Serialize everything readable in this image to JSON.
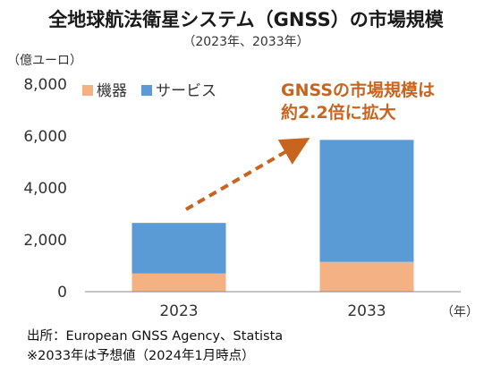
{
  "title": "全地球航法衛星システム（GNSS）の市場規模",
  "subtitle": "（2023年、2033年）",
  "source_line": "出所：European GNSS Agency、Statista",
  "note_line": "※2033年は予想値（2024年1月時点）",
  "chart_data": {
    "type": "bar",
    "stacked": true,
    "categories": [
      "2023",
      "2033"
    ],
    "series": [
      {
        "name": "機器",
        "values": [
          700,
          1150
        ],
        "color": "#f4b183"
      },
      {
        "name": "サービス",
        "values": [
          1950,
          4700
        ],
        "color": "#5b9bd5"
      }
    ],
    "ylim": [
      0,
      8000
    ],
    "yticks": [
      "0",
      "2,000",
      "4,000",
      "6,000",
      "8,000"
    ],
    "ylabel": "（億ユーロ）",
    "xlabel": "（年）",
    "legend_position": "top-left",
    "grid": false,
    "annotation": {
      "lines": [
        "GNSSの市場規模は",
        "約2.2倍に拡大"
      ],
      "color": "#c8641e"
    }
  }
}
